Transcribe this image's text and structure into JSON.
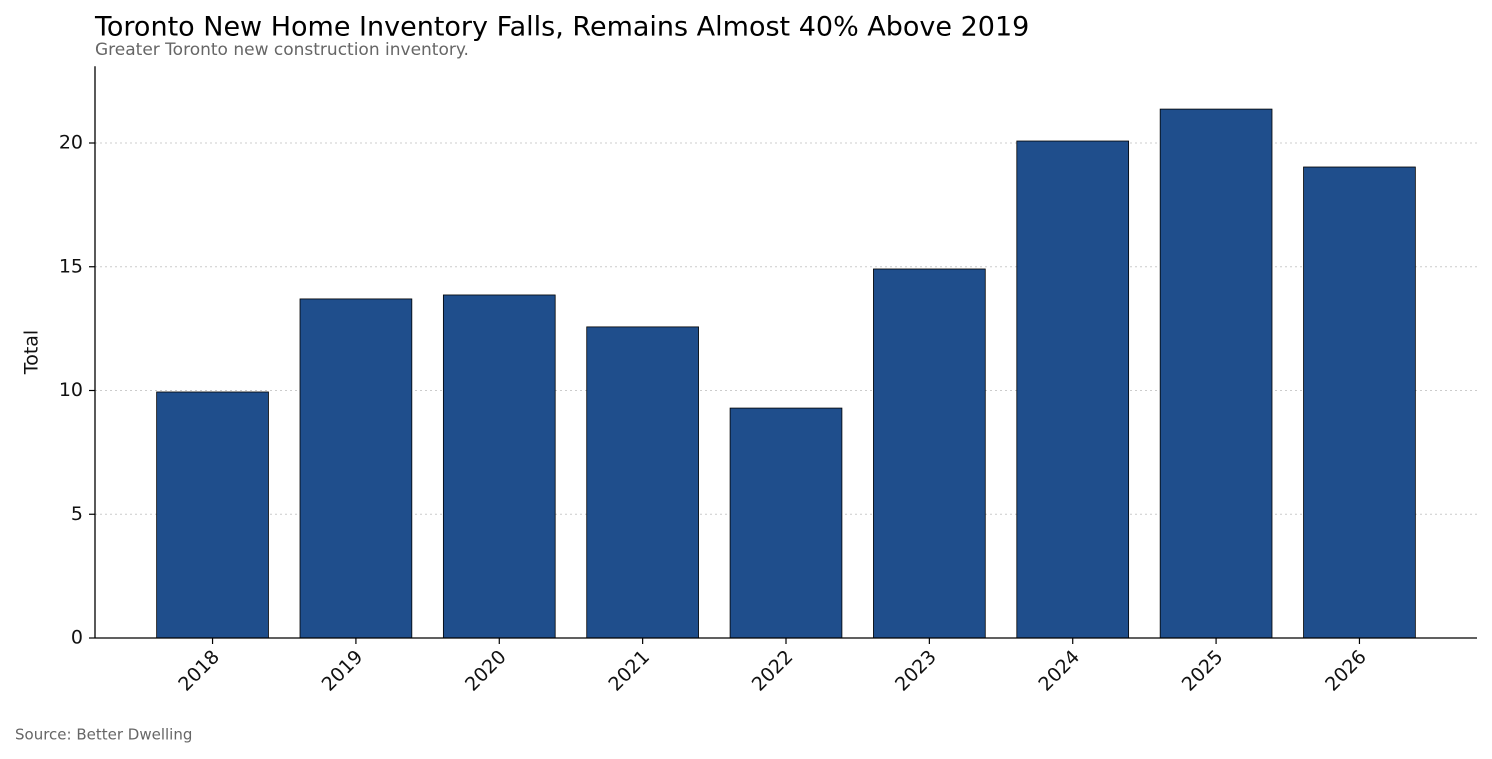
{
  "chart_data": {
    "type": "bar",
    "title": "Toronto New Home Inventory Falls, Remains Almost 40% Above 2019",
    "subtitle": "Greater Toronto new construction inventory.",
    "y_label": "Total",
    "source": "Source: Better Dwelling",
    "categories": [
      "2018",
      "2019",
      "2020",
      "2021",
      "2022",
      "2023",
      "2024",
      "2025",
      "2026"
    ],
    "values": [
      9.94,
      13.7,
      13.86,
      12.57,
      9.29,
      14.91,
      20.08,
      21.37,
      19.03
    ],
    "color": "#1f4e8c",
    "ylim": [
      0,
      23.1
    ],
    "yticks": [
      0,
      5,
      10,
      15,
      20
    ],
    "grid": true
  }
}
